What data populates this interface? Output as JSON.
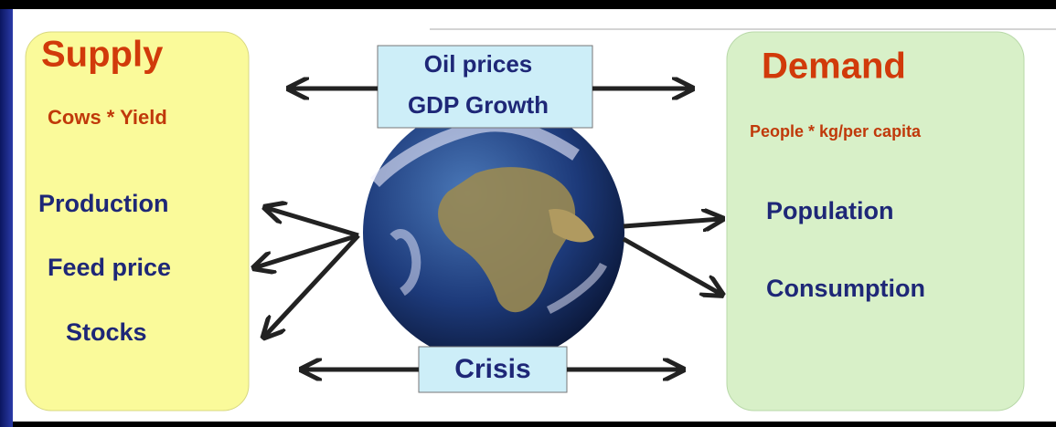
{
  "supply": {
    "title": "Supply",
    "formula": "Cows * Yield",
    "items": [
      "Production",
      "Feed price",
      "Stocks"
    ]
  },
  "demand": {
    "title": "Demand",
    "formula": "People * kg/per capita",
    "items": [
      "Population",
      "Consumption"
    ]
  },
  "drivers": [
    "Oil prices",
    "GDP Growth"
  ],
  "crisis": "Crisis"
}
